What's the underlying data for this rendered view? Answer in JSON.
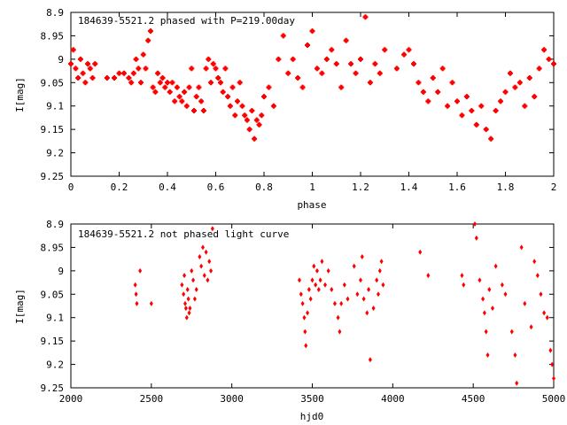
{
  "chart_data": [
    {
      "type": "scatter",
      "title": "184639-5521.2 phased with P=219.00day",
      "xlabel": "phase",
      "ylabel": "I[mag]",
      "xlim": [
        0,
        2
      ],
      "ylim": [
        9.25,
        8.9
      ],
      "y_inverted": true,
      "grid": false,
      "marker_color": "#ff0000",
      "xticks": [
        0,
        0.2,
        0.4,
        0.6,
        0.8,
        1,
        1.2,
        1.4,
        1.6,
        1.8,
        2
      ],
      "xtick_labels": [
        "0",
        "0.2",
        "0.4",
        "0.6",
        "0.8",
        "1",
        "1.2",
        "1.4",
        "1.6",
        "1.8",
        "2"
      ],
      "yticks": [
        8.9,
        8.95,
        9,
        9.05,
        9.1,
        9.15,
        9.2,
        9.25
      ],
      "ytick_labels": [
        "8.9",
        "8.95",
        "9",
        "9.05",
        "9.1",
        "9.15",
        "9.2",
        "9.25"
      ],
      "points": [
        [
          0.0,
          9.01
        ],
        [
          0.01,
          8.98
        ],
        [
          0.02,
          9.02
        ],
        [
          0.03,
          9.04
        ],
        [
          0.04,
          9.0
        ],
        [
          0.05,
          9.03
        ],
        [
          0.06,
          9.05
        ],
        [
          0.07,
          9.01
        ],
        [
          0.08,
          9.02
        ],
        [
          0.09,
          9.04
        ],
        [
          0.1,
          9.01
        ],
        [
          0.15,
          9.04
        ],
        [
          0.18,
          9.04
        ],
        [
          0.2,
          9.03
        ],
        [
          0.22,
          9.03
        ],
        [
          0.24,
          9.04
        ],
        [
          0.25,
          9.05
        ],
        [
          0.26,
          9.03
        ],
        [
          0.27,
          9.0
        ],
        [
          0.28,
          9.02
        ],
        [
          0.29,
          9.05
        ],
        [
          0.3,
          8.99
        ],
        [
          0.31,
          9.02
        ],
        [
          0.32,
          8.96
        ],
        [
          0.33,
          8.94
        ],
        [
          0.34,
          9.06
        ],
        [
          0.35,
          9.07
        ],
        [
          0.36,
          9.03
        ],
        [
          0.37,
          9.05
        ],
        [
          0.38,
          9.04
        ],
        [
          0.39,
          9.06
        ],
        [
          0.4,
          9.05
        ],
        [
          0.41,
          9.07
        ],
        [
          0.42,
          9.05
        ],
        [
          0.43,
          9.09
        ],
        [
          0.44,
          9.06
        ],
        [
          0.45,
          9.08
        ],
        [
          0.46,
          9.09
        ],
        [
          0.47,
          9.07
        ],
        [
          0.48,
          9.1
        ],
        [
          0.49,
          9.06
        ],
        [
          0.5,
          9.02
        ],
        [
          0.51,
          9.11
        ],
        [
          0.52,
          9.08
        ],
        [
          0.53,
          9.06
        ],
        [
          0.54,
          9.09
        ],
        [
          0.55,
          9.11
        ],
        [
          0.56,
          9.02
        ],
        [
          0.57,
          9.0
        ],
        [
          0.58,
          9.05
        ],
        [
          0.59,
          9.01
        ],
        [
          0.6,
          9.02
        ],
        [
          0.61,
          9.04
        ],
        [
          0.62,
          9.05
        ],
        [
          0.63,
          9.07
        ],
        [
          0.64,
          9.02
        ],
        [
          0.65,
          9.08
        ],
        [
          0.66,
          9.1
        ],
        [
          0.67,
          9.06
        ],
        [
          0.68,
          9.12
        ],
        [
          0.69,
          9.09
        ],
        [
          0.7,
          9.05
        ],
        [
          0.71,
          9.1
        ],
        [
          0.72,
          9.12
        ],
        [
          0.73,
          9.13
        ],
        [
          0.74,
          9.15
        ],
        [
          0.75,
          9.11
        ],
        [
          0.76,
          9.17
        ],
        [
          0.77,
          9.13
        ],
        [
          0.78,
          9.14
        ],
        [
          0.79,
          9.12
        ],
        [
          0.8,
          9.08
        ],
        [
          0.82,
          9.06
        ],
        [
          0.84,
          9.1
        ],
        [
          0.86,
          9.0
        ],
        [
          0.88,
          8.95
        ],
        [
          0.9,
          9.03
        ],
        [
          0.92,
          9.0
        ],
        [
          0.94,
          9.04
        ],
        [
          0.96,
          9.06
        ],
        [
          0.98,
          8.97
        ],
        [
          1.0,
          8.94
        ],
        [
          1.02,
          9.02
        ],
        [
          1.04,
          9.03
        ],
        [
          1.06,
          9.0
        ],
        [
          1.08,
          8.98
        ],
        [
          1.1,
          9.01
        ],
        [
          1.12,
          9.06
        ],
        [
          1.14,
          8.96
        ],
        [
          1.16,
          9.01
        ],
        [
          1.18,
          9.03
        ],
        [
          1.2,
          9.0
        ],
        [
          1.22,
          8.91
        ],
        [
          1.24,
          9.05
        ],
        [
          1.26,
          9.01
        ],
        [
          1.28,
          9.03
        ],
        [
          1.3,
          8.98
        ],
        [
          1.35,
          9.02
        ],
        [
          1.38,
          8.99
        ],
        [
          1.4,
          8.98
        ],
        [
          1.42,
          9.01
        ],
        [
          1.44,
          9.05
        ],
        [
          1.46,
          9.07
        ],
        [
          1.48,
          9.09
        ],
        [
          1.5,
          9.04
        ],
        [
          1.52,
          9.07
        ],
        [
          1.54,
          9.02
        ],
        [
          1.56,
          9.1
        ],
        [
          1.58,
          9.05
        ],
        [
          1.6,
          9.09
        ],
        [
          1.62,
          9.12
        ],
        [
          1.64,
          9.08
        ],
        [
          1.66,
          9.11
        ],
        [
          1.68,
          9.14
        ],
        [
          1.7,
          9.1
        ],
        [
          1.72,
          9.15
        ],
        [
          1.74,
          9.17
        ],
        [
          1.76,
          9.11
        ],
        [
          1.78,
          9.09
        ],
        [
          1.8,
          9.07
        ],
        [
          1.82,
          9.03
        ],
        [
          1.84,
          9.06
        ],
        [
          1.86,
          9.05
        ],
        [
          1.88,
          9.1
        ],
        [
          1.9,
          9.04
        ],
        [
          1.92,
          9.08
        ],
        [
          1.94,
          9.02
        ],
        [
          1.96,
          8.98
        ],
        [
          1.98,
          9.0
        ],
        [
          2.0,
          9.01
        ]
      ]
    },
    {
      "type": "scatter",
      "title": "184639-5521.2 not phased light curve",
      "xlabel": "hjd0",
      "ylabel": "I[mag]",
      "xlim": [
        2000,
        5000
      ],
      "ylim": [
        9.25,
        8.9
      ],
      "y_inverted": true,
      "grid": false,
      "marker_color": "#ff0000",
      "xticks": [
        2000,
        2500,
        3000,
        3500,
        4000,
        4500,
        5000
      ],
      "xtick_labels": [
        "2000",
        "2500",
        "3000",
        "3500",
        "4000",
        "4500",
        "5000"
      ],
      "yticks": [
        8.9,
        8.95,
        9,
        9.05,
        9.1,
        9.15,
        9.2,
        9.25
      ],
      "ytick_labels": [
        "8.9",
        "8.95",
        "9",
        "9.05",
        "9.1",
        "9.15",
        "9.2",
        "9.25"
      ],
      "points": [
        [
          2400,
          9.03
        ],
        [
          2405,
          9.05
        ],
        [
          2410,
          9.07
        ],
        [
          2430,
          9.0
        ],
        [
          2500,
          9.07
        ],
        [
          2690,
          9.03
        ],
        [
          2700,
          9.05
        ],
        [
          2705,
          9.01
        ],
        [
          2710,
          9.07
        ],
        [
          2715,
          9.08
        ],
        [
          2720,
          9.1
        ],
        [
          2725,
          9.04
        ],
        [
          2730,
          9.06
        ],
        [
          2735,
          9.09
        ],
        [
          2740,
          9.08
        ],
        [
          2750,
          9.0
        ],
        [
          2760,
          9.02
        ],
        [
          2770,
          9.06
        ],
        [
          2780,
          9.04
        ],
        [
          2800,
          8.97
        ],
        [
          2810,
          8.99
        ],
        [
          2820,
          8.95
        ],
        [
          2830,
          9.01
        ],
        [
          2840,
          8.96
        ],
        [
          2850,
          9.02
        ],
        [
          2860,
          8.98
        ],
        [
          2870,
          9.0
        ],
        [
          2880,
          8.91
        ],
        [
          3420,
          9.02
        ],
        [
          3430,
          9.05
        ],
        [
          3440,
          9.07
        ],
        [
          3450,
          9.1
        ],
        [
          3455,
          9.13
        ],
        [
          3460,
          9.16
        ],
        [
          3470,
          9.09
        ],
        [
          3480,
          9.04
        ],
        [
          3490,
          9.06
        ],
        [
          3500,
          9.02
        ],
        [
          3510,
          8.99
        ],
        [
          3520,
          9.03
        ],
        [
          3530,
          9.0
        ],
        [
          3540,
          9.04
        ],
        [
          3550,
          9.02
        ],
        [
          3560,
          8.98
        ],
        [
          3580,
          9.03
        ],
        [
          3600,
          9.0
        ],
        [
          3620,
          9.04
        ],
        [
          3640,
          9.07
        ],
        [
          3660,
          9.1
        ],
        [
          3670,
          9.13
        ],
        [
          3680,
          9.07
        ],
        [
          3700,
          9.03
        ],
        [
          3720,
          9.06
        ],
        [
          3760,
          8.99
        ],
        [
          3780,
          9.05
        ],
        [
          3800,
          9.02
        ],
        [
          3810,
          8.97
        ],
        [
          3820,
          9.06
        ],
        [
          3840,
          9.09
        ],
        [
          3850,
          9.04
        ],
        [
          3860,
          9.19
        ],
        [
          3880,
          9.08
        ],
        [
          3900,
          9.02
        ],
        [
          3910,
          9.05
        ],
        [
          3920,
          9.0
        ],
        [
          3930,
          8.98
        ],
        [
          3940,
          9.03
        ],
        [
          4170,
          8.96
        ],
        [
          4220,
          9.01
        ],
        [
          4430,
          9.01
        ],
        [
          4440,
          9.03
        ],
        [
          4510,
          8.9
        ],
        [
          4520,
          8.93
        ],
        [
          4540,
          9.02
        ],
        [
          4560,
          9.06
        ],
        [
          4570,
          9.09
        ],
        [
          4580,
          9.13
        ],
        [
          4590,
          9.18
        ],
        [
          4600,
          9.04
        ],
        [
          4620,
          9.08
        ],
        [
          4640,
          8.99
        ],
        [
          4680,
          9.03
        ],
        [
          4700,
          9.05
        ],
        [
          4740,
          9.13
        ],
        [
          4760,
          9.18
        ],
        [
          4770,
          9.24
        ],
        [
          4800,
          8.95
        ],
        [
          4820,
          9.07
        ],
        [
          4860,
          9.12
        ],
        [
          4880,
          8.98
        ],
        [
          4900,
          9.01
        ],
        [
          4920,
          9.05
        ],
        [
          4940,
          9.09
        ],
        [
          4960,
          9.1
        ],
        [
          4980,
          9.17
        ],
        [
          4990,
          9.2
        ],
        [
          5000,
          9.23
        ]
      ]
    }
  ]
}
